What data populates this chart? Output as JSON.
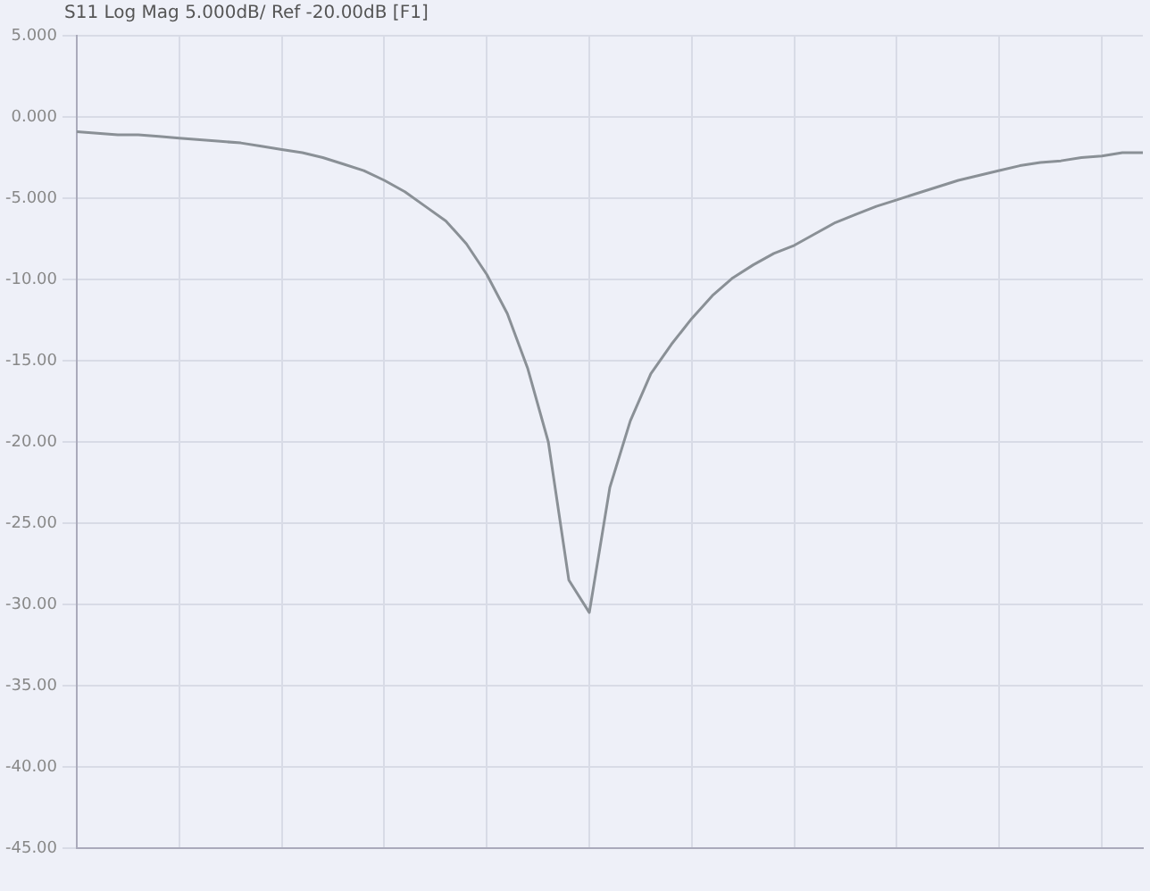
{
  "chart_data": {
    "type": "line",
    "title": "S11 Log Mag 5.000dB/ Ref -20.00dB [F1]",
    "categories": [
      null,
      null,
      null,
      null,
      null,
      null,
      null,
      null,
      null,
      null,
      null,
      null,
      null,
      null,
      null,
      null,
      null,
      null,
      null,
      null,
      null,
      null,
      null,
      null,
      null,
      null,
      null,
      null,
      null,
      null,
      null,
      null,
      null,
      null,
      null,
      null,
      null,
      null,
      null,
      null,
      null,
      null,
      null,
      null,
      null,
      null,
      null,
      null,
      null,
      null,
      null,
      null,
      null
    ],
    "series": [
      {
        "color": "#8a9096",
        "values": [
          -0.9,
          -1.0,
          -1.1,
          -1.1,
          -1.2,
          -1.3,
          -1.4,
          -1.5,
          -1.6,
          -1.8,
          -2.0,
          -2.2,
          -2.5,
          -2.9,
          -3.3,
          -3.9,
          -4.6,
          -5.5,
          -6.4,
          -7.8,
          -9.7,
          -12.1,
          -15.5,
          -20.0,
          -28.5,
          -30.5,
          -22.8,
          -18.7,
          -15.8,
          -14.0,
          -12.4,
          -11.0,
          -9.9,
          -9.1,
          -8.4,
          -7.9,
          -7.2,
          -6.5,
          -6.0,
          -5.5,
          -5.1,
          -4.7,
          -4.3,
          -3.9,
          -3.6,
          -3.3,
          -3.0,
          -2.8,
          -2.7,
          -2.5,
          -2.4,
          -2.2,
          -2.2
        ]
      }
    ],
    "ylim": [
      -45,
      5
    ],
    "yticks": [
      {
        "value": 5,
        "label": "5.000"
      },
      {
        "value": 0,
        "label": "0.000"
      },
      {
        "value": -5,
        "label": "-5.000"
      },
      {
        "value": -10,
        "label": "-10.00"
      },
      {
        "value": -15,
        "label": "-15.00"
      },
      {
        "value": -20,
        "label": "-20.00"
      },
      {
        "value": -25,
        "label": "-25.00"
      },
      {
        "value": -30,
        "label": "-30.00"
      },
      {
        "value": -35,
        "label": "-35.00"
      },
      {
        "value": -40,
        "label": "-40.00"
      },
      {
        "value": -45,
        "label": "-45.00"
      }
    ],
    "grid": true,
    "tick_labels": "y",
    "marker": "none",
    "line_style": "solid",
    "legend": false
  }
}
